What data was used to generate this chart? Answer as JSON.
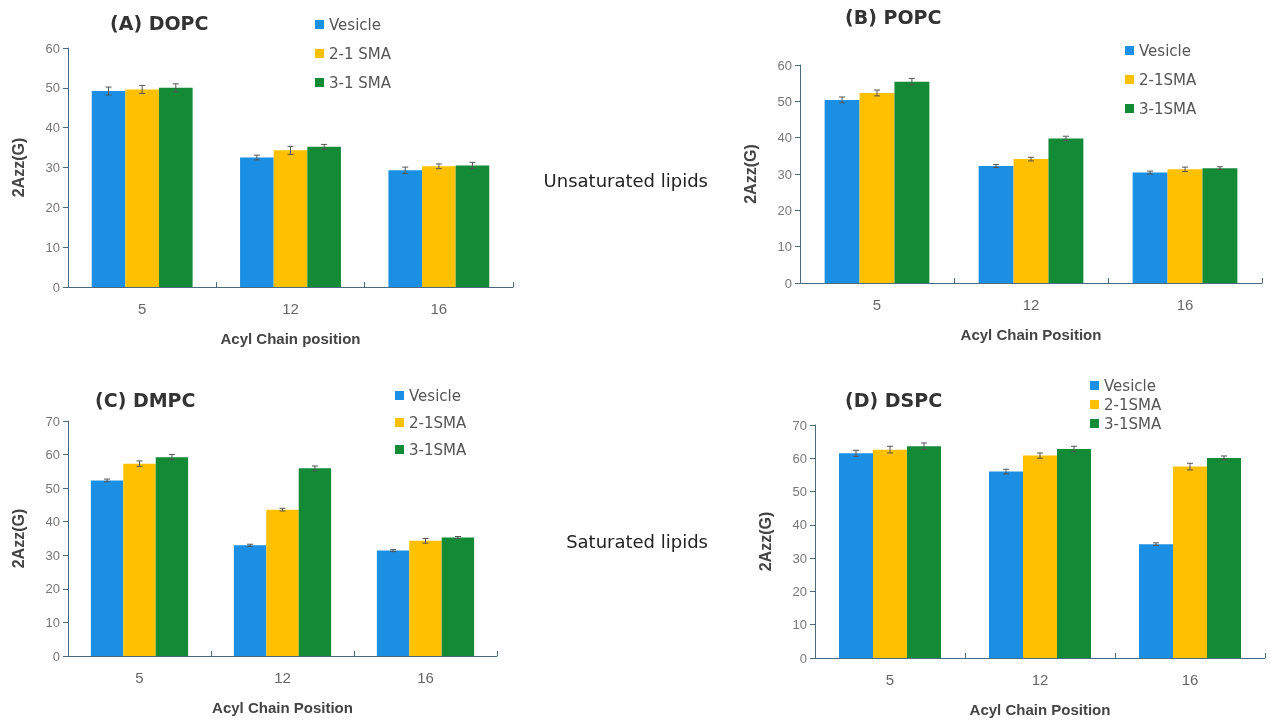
{
  "chart_data": [
    {
      "type": "bar",
      "title": "(A) DOPC",
      "xlabel": "Acyl Chain position",
      "ylabel": "2Azz(G)",
      "annotations": [
        "Unsaturated lipids"
      ],
      "categories": [
        "5",
        "12",
        "16"
      ],
      "ylim": [
        0,
        60
      ],
      "yticks": [
        0,
        10,
        20,
        30,
        40,
        50,
        60
      ],
      "grid": false,
      "legend": "top right",
      "series": [
        {
          "name": "Vesicle",
          "color": "#1a8fe3",
          "values": [
            49.2,
            32.5,
            29.3
          ],
          "errors": [
            1,
            0.6,
            0.8
          ]
        },
        {
          "name": "2-1 SMA",
          "color": "#ffc000",
          "values": [
            49.6,
            34.3,
            30.3
          ],
          "errors": [
            1,
            1,
            0.6
          ]
        },
        {
          "name": "3-1 SMA",
          "color": "#138a36",
          "values": [
            50,
            35.2,
            30.5
          ],
          "errors": [
            1,
            0.6,
            0.8
          ]
        }
      ]
    },
    {
      "type": "bar",
      "title": "(B) POPC",
      "xlabel": "Acyl Chain Position",
      "ylabel": "2Azz(G)",
      "categories": [
        "5",
        "12",
        "16"
      ],
      "ylim": [
        0,
        60
      ],
      "yticks": [
        0,
        10,
        20,
        30,
        40,
        50,
        60
      ],
      "grid": false,
      "legend": "top right",
      "series": [
        {
          "name": "Vesicle",
          "color": "#1a8fe3",
          "values": [
            50.4,
            32.2,
            30.4
          ],
          "errors": [
            0.8,
            0.4,
            0.4
          ]
        },
        {
          "name": "2-1SMA",
          "color": "#ffc000",
          "values": [
            52.3,
            34.1,
            31.3
          ],
          "errors": [
            0.8,
            0.5,
            0.6
          ]
        },
        {
          "name": "3-1SMA",
          "color": "#138a36",
          "values": [
            55.4,
            39.8,
            31.6
          ],
          "errors": [
            0.9,
            0.6,
            0.4
          ]
        }
      ]
    },
    {
      "type": "bar",
      "title": "(C) DMPC",
      "xlabel": "Acyl Chain Position",
      "ylabel": "2Azz(G)",
      "annotations": [
        "Saturated lipids"
      ],
      "categories": [
        "5",
        "12",
        "16"
      ],
      "ylim": [
        0,
        70
      ],
      "yticks": [
        0,
        10,
        20,
        30,
        40,
        50,
        60,
        70
      ],
      "grid": false,
      "legend": "top right",
      "series": [
        {
          "name": "Vesicle",
          "color": "#1a8fe3",
          "values": [
            52.3,
            33,
            31.4
          ],
          "errors": [
            0.4,
            0.3,
            0.3
          ]
        },
        {
          "name": "2-1SMA",
          "color": "#ffc000",
          "values": [
            57.3,
            43.6,
            34.3
          ],
          "errors": [
            0.8,
            0.4,
            0.7
          ]
        },
        {
          "name": "3-1SMA",
          "color": "#138a36",
          "values": [
            59.2,
            55.9,
            35.3
          ],
          "errors": [
            0.8,
            0.7,
            0.3
          ]
        }
      ]
    },
    {
      "type": "bar",
      "title": "(D) DSPC",
      "xlabel": "Acyl Chain Position",
      "ylabel": "2Azz(G)",
      "categories": [
        "5",
        "12",
        "16"
      ],
      "ylim": [
        0,
        70
      ],
      "yticks": [
        0,
        10,
        20,
        30,
        40,
        50,
        60,
        70
      ],
      "grid": false,
      "legend": "top right",
      "series": [
        {
          "name": "Vesicle",
          "color": "#1a8fe3",
          "values": [
            61.5,
            56,
            34.2
          ],
          "errors": [
            0.9,
            0.7,
            0.4
          ]
        },
        {
          "name": "2-1SMA",
          "color": "#ffc000",
          "values": [
            62.6,
            60.8,
            57.5
          ],
          "errors": [
            1,
            0.8,
            1
          ]
        },
        {
          "name": "3-1SMA",
          "color": "#138a36",
          "values": [
            63.6,
            62.8,
            60.1
          ],
          "errors": [
            1,
            0.8,
            0.6
          ]
        }
      ]
    }
  ]
}
